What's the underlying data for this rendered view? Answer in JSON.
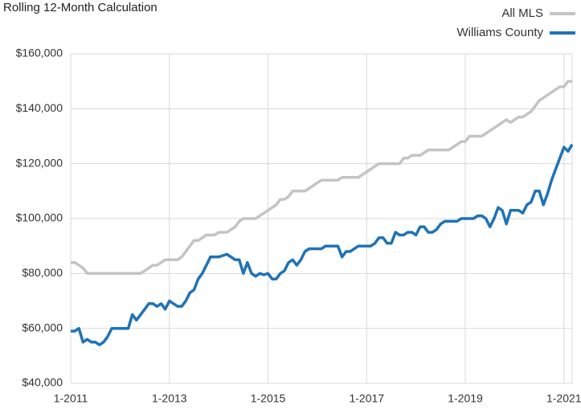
{
  "chart_data": {
    "type": "line",
    "title": "Rolling 12-Month Calculation",
    "categories": [
      "1-2011",
      null,
      null,
      null,
      null,
      null,
      null,
      null,
      null,
      null,
      null,
      null,
      null,
      null,
      null,
      null,
      null,
      null,
      null,
      null,
      null,
      null,
      null,
      null,
      "1-2013",
      null,
      null,
      null,
      null,
      null,
      null,
      null,
      null,
      null,
      null,
      null,
      null,
      null,
      null,
      null,
      null,
      null,
      null,
      null,
      null,
      null,
      null,
      null,
      "1-2015",
      null,
      null,
      null,
      null,
      null,
      null,
      null,
      null,
      null,
      null,
      null,
      null,
      null,
      null,
      null,
      null,
      null,
      null,
      null,
      null,
      null,
      null,
      null,
      "1-2017",
      null,
      null,
      null,
      null,
      null,
      null,
      null,
      null,
      null,
      null,
      null,
      null,
      null,
      null,
      null,
      null,
      null,
      null,
      null,
      null,
      null,
      null,
      null,
      "1-2019",
      null,
      null,
      null,
      null,
      null,
      null,
      null,
      null,
      null,
      null,
      null,
      null,
      null,
      null,
      null,
      null,
      null,
      null,
      null,
      null,
      null,
      null,
      null,
      "1-2021",
      null,
      null
    ],
    "series": [
      {
        "name": "All MLS",
        "color": "#c4c4c4",
        "values": [
          84000,
          84000,
          83000,
          82000,
          80000,
          80000,
          80000,
          80000,
          80000,
          80000,
          80000,
          80000,
          80000,
          80000,
          80000,
          80000,
          80000,
          80000,
          81000,
          82000,
          83000,
          83000,
          84000,
          85000,
          85000,
          85000,
          85000,
          86000,
          88000,
          90000,
          92000,
          92000,
          93000,
          94000,
          94000,
          94000,
          95000,
          95000,
          95000,
          96000,
          97000,
          99000,
          100000,
          100000,
          100000,
          100000,
          101000,
          102000,
          103000,
          104000,
          105000,
          107000,
          107000,
          108000,
          110000,
          110000,
          110000,
          110000,
          111000,
          112000,
          113000,
          114000,
          114000,
          114000,
          114000,
          114000,
          115000,
          115000,
          115000,
          115000,
          115000,
          116000,
          117000,
          118000,
          119000,
          120000,
          120000,
          120000,
          120000,
          120000,
          120000,
          122000,
          122000,
          123000,
          123000,
          123000,
          124000,
          125000,
          125000,
          125000,
          125000,
          125000,
          125000,
          126000,
          127000,
          128000,
          128000,
          130000,
          130000,
          130000,
          130000,
          131000,
          132000,
          133000,
          134000,
          135000,
          136000,
          135000,
          136000,
          137000,
          137000,
          138000,
          139000,
          141000,
          143000,
          144000,
          145000,
          146000,
          147000,
          148000,
          148000,
          150000,
          150000
        ]
      },
      {
        "name": "Williams County",
        "color": "#1f73b7",
        "values": [
          59000,
          59000,
          60000,
          55000,
          56000,
          55000,
          55000,
          54000,
          55000,
          57000,
          60000,
          60000,
          60000,
          60000,
          60000,
          65000,
          63000,
          65000,
          67000,
          69000,
          69000,
          68000,
          69000,
          67000,
          70000,
          69000,
          68000,
          68000,
          70000,
          73000,
          74000,
          78000,
          80000,
          83000,
          86000,
          86000,
          86000,
          86500,
          87000,
          86000,
          85000,
          85000,
          80000,
          84000,
          80000,
          79000,
          80000,
          79500,
          80000,
          78000,
          78000,
          80000,
          81000,
          84000,
          85000,
          83000,
          85000,
          88000,
          89000,
          89000,
          89000,
          89000,
          90000,
          90000,
          90000,
          90000,
          86000,
          88000,
          88000,
          89000,
          90000,
          90000,
          90000,
          90000,
          91000,
          93000,
          93000,
          91000,
          91000,
          95000,
          94000,
          94000,
          95000,
          95000,
          94000,
          97000,
          97000,
          95000,
          95000,
          96000,
          98000,
          99000,
          99000,
          99000,
          99000,
          100000,
          100000,
          100000,
          100000,
          101000,
          101000,
          100000,
          97000,
          100000,
          104000,
          103000,
          98000,
          103000,
          103000,
          103000,
          102000,
          105000,
          106000,
          110000,
          110000,
          105000,
          109000,
          114000,
          118000,
          122000,
          126000,
          124500,
          127000
        ]
      }
    ],
    "ylim": [
      40000,
      160000
    ],
    "yticks": [
      {
        "value": 40000,
        "label": "$40,000"
      },
      {
        "value": 60000,
        "label": "$60,000"
      },
      {
        "value": 80000,
        "label": "$80,000"
      },
      {
        "value": 100000,
        "label": "$100,000"
      },
      {
        "value": 120000,
        "label": "$120,000"
      },
      {
        "value": 140000,
        "label": "$140,000"
      },
      {
        "value": 160000,
        "label": "$160,000"
      }
    ],
    "grid": true
  }
}
